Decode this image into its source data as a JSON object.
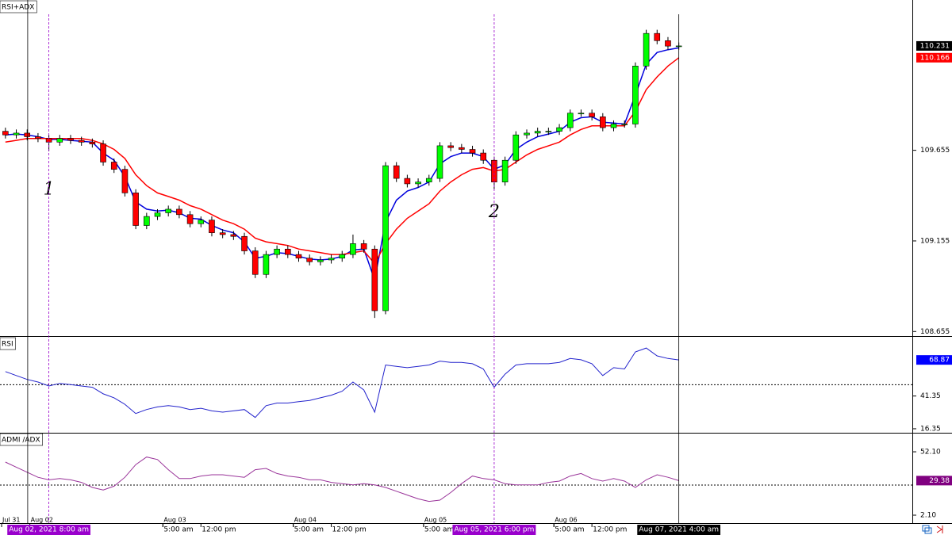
{
  "time_axis": {
    "xlim": [
      0,
      168
    ],
    "xticks": [
      {
        "value": 0.3,
        "label": "Jul 31"
      },
      {
        "value": 5.5,
        "label": "Aug 02"
      },
      {
        "value": 30,
        "label": "Aug 03"
      },
      {
        "value": 54,
        "label": "Aug 04"
      },
      {
        "value": 78,
        "label": "Aug 05"
      },
      {
        "value": 102,
        "label": "Aug 06"
      }
    ],
    "time_ticks": [
      {
        "value": 30,
        "label": "5:00 am"
      },
      {
        "value": 37,
        "label": "12:00 pm"
      },
      {
        "value": 54,
        "label": "5:00 am"
      },
      {
        "value": 61,
        "label": "12:00 pm"
      },
      {
        "value": 78,
        "label": "5:00 am"
      },
      {
        "value": 102,
        "label": "5:00 am"
      },
      {
        "value": 109,
        "label": "12:00 pm"
      }
    ],
    "separators": [
      5.1
    ],
    "markers": [
      {
        "value": 9,
        "label": "Aug 02, 2021 8:00 am",
        "color": "#9900cc",
        "dashed": true
      },
      {
        "value": 91,
        "label": "Aug 05, 2021 6:00 pm",
        "color": "#9900cc",
        "dashed": true
      },
      {
        "value": 125,
        "label": "Aug 07, 2021 4:00 am",
        "color": "#000000",
        "dashed": false
      }
    ]
  },
  "chart_data": [
    {
      "type": "candlestick",
      "title": "RSI+ADX",
      "ylim": [
        108.63,
        110.48
      ],
      "yticks": [
        108.655,
        109.155,
        109.655
      ],
      "up_color": "#00ff00",
      "down_color": "#ff0000",
      "tags": [
        {
          "value": 110.231,
          "label": "110.231",
          "color": "#000000"
        },
        {
          "value": 110.166,
          "label": "110.166",
          "color": "#ff0000"
        }
      ],
      "annotations": [
        {
          "text": "1",
          "x": 9,
          "y": 109.436
        },
        {
          "text": "2",
          "x": 91,
          "y": 109.313
        }
      ],
      "x": [
        1,
        3,
        5,
        7,
        9,
        11,
        13,
        15,
        17,
        19,
        21,
        23,
        25,
        27,
        29,
        31,
        33,
        35,
        37,
        39,
        41,
        43,
        45,
        47,
        49,
        51,
        53,
        55,
        57,
        59,
        61,
        63,
        65,
        67,
        69,
        71,
        73,
        75,
        77,
        79,
        81,
        83,
        85,
        87,
        89,
        91,
        93,
        95,
        97,
        99,
        101,
        103,
        105,
        107,
        109,
        111,
        113,
        115,
        117,
        119,
        121,
        123,
        125
      ],
      "open": [
        109.76,
        109.74,
        109.75,
        109.73,
        109.72,
        109.7,
        109.72,
        109.71,
        109.7,
        109.69,
        109.59,
        109.55,
        109.42,
        109.24,
        109.29,
        109.31,
        109.33,
        109.3,
        109.25,
        109.27,
        109.2,
        109.19,
        109.18,
        109.1,
        108.97,
        109.08,
        109.11,
        109.08,
        109.06,
        109.04,
        109.05,
        109.06,
        109.08,
        109.14,
        109.11,
        108.77,
        109.57,
        109.5,
        109.47,
        109.48,
        109.5,
        109.68,
        109.67,
        109.66,
        109.64,
        109.6,
        109.48,
        109.6,
        109.74,
        109.75,
        109.76,
        109.76,
        109.78,
        109.86,
        109.86,
        109.84,
        109.78,
        109.8,
        109.8,
        110.12,
        110.3,
        110.26,
        110.23
      ],
      "high": [
        109.78,
        109.77,
        109.77,
        109.75,
        109.74,
        109.74,
        109.74,
        109.73,
        109.72,
        109.71,
        109.61,
        109.57,
        109.44,
        109.31,
        109.33,
        109.35,
        109.35,
        109.32,
        109.29,
        109.29,
        109.22,
        109.21,
        109.2,
        109.12,
        109.1,
        109.13,
        109.13,
        109.1,
        109.08,
        109.07,
        109.08,
        109.1,
        109.19,
        109.16,
        109.13,
        109.59,
        109.59,
        109.52,
        109.5,
        109.52,
        109.7,
        109.7,
        109.69,
        109.68,
        109.66,
        109.62,
        109.62,
        109.76,
        109.77,
        109.78,
        109.78,
        109.8,
        109.88,
        109.88,
        109.88,
        109.86,
        109.82,
        109.82,
        110.14,
        110.32,
        110.32,
        110.28,
        110.25
      ],
      "low": [
        109.72,
        109.72,
        109.71,
        109.7,
        109.65,
        109.68,
        109.69,
        109.68,
        109.67,
        109.57,
        109.53,
        109.4,
        109.22,
        109.22,
        109.27,
        109.29,
        109.28,
        109.23,
        109.23,
        109.18,
        109.17,
        109.16,
        109.08,
        108.95,
        108.95,
        109.06,
        109.06,
        109.04,
        109.02,
        109.02,
        109.03,
        109.04,
        109.06,
        109.09,
        108.73,
        108.75,
        109.48,
        109.45,
        109.45,
        109.46,
        109.48,
        109.65,
        109.64,
        109.62,
        109.58,
        109.44,
        109.46,
        109.58,
        109.72,
        109.73,
        109.74,
        109.74,
        109.76,
        109.84,
        109.82,
        109.76,
        109.76,
        109.78,
        109.78,
        110.1,
        110.24,
        110.21,
        110.21
      ],
      "close": [
        109.74,
        109.75,
        109.73,
        109.72,
        109.7,
        109.72,
        109.71,
        109.7,
        109.69,
        109.59,
        109.55,
        109.42,
        109.24,
        109.29,
        109.31,
        109.33,
        109.3,
        109.25,
        109.27,
        109.2,
        109.19,
        109.18,
        109.1,
        108.97,
        109.08,
        109.11,
        109.08,
        109.06,
        109.04,
        109.05,
        109.06,
        109.08,
        109.14,
        109.11,
        108.77,
        109.57,
        109.5,
        109.47,
        109.48,
        109.5,
        109.68,
        109.67,
        109.66,
        109.64,
        109.6,
        109.48,
        109.6,
        109.74,
        109.75,
        109.76,
        109.76,
        109.78,
        109.86,
        109.86,
        109.84,
        109.78,
        109.8,
        109.8,
        110.12,
        110.3,
        110.26,
        110.23,
        110.231
      ],
      "lines": [
        {
          "color": "#0000dd",
          "values": [
            109.74,
            109.745,
            109.74,
            109.73,
            109.715,
            109.715,
            109.71,
            109.705,
            109.7,
            109.64,
            109.6,
            109.51,
            109.37,
            109.33,
            109.32,
            109.325,
            109.31,
            109.28,
            109.275,
            109.24,
            109.215,
            109.2,
            109.15,
            109.06,
            109.07,
            109.09,
            109.085,
            109.07,
            109.055,
            109.05,
            109.055,
            109.07,
            109.105,
            109.11,
            108.94,
            109.26,
            109.38,
            109.43,
            109.45,
            109.48,
            109.58,
            109.62,
            109.64,
            109.64,
            109.62,
            109.55,
            109.575,
            109.66,
            109.7,
            109.73,
            109.745,
            109.76,
            109.81,
            109.835,
            109.84,
            109.81,
            109.805,
            109.8,
            109.96,
            110.13,
            110.195,
            110.21,
            110.22
          ]
        },
        {
          "color": "#ff0000",
          "values": [
            109.7,
            109.71,
            109.72,
            109.72,
            109.72,
            109.72,
            109.72,
            109.72,
            109.71,
            109.69,
            109.66,
            109.61,
            109.52,
            109.46,
            109.42,
            109.4,
            109.38,
            109.35,
            109.33,
            109.3,
            109.27,
            109.25,
            109.22,
            109.17,
            109.15,
            109.14,
            109.13,
            109.11,
            109.1,
            109.09,
            109.08,
            109.08,
            109.09,
            109.1,
            109.03,
            109.14,
            109.22,
            109.28,
            109.32,
            109.36,
            109.43,
            109.48,
            109.52,
            109.55,
            109.56,
            109.54,
            109.55,
            109.59,
            109.63,
            109.66,
            109.68,
            109.7,
            109.74,
            109.77,
            109.79,
            109.79,
            109.79,
            109.79,
            109.87,
            109.99,
            110.06,
            110.12,
            110.166
          ]
        }
      ]
    },
    {
      "type": "line",
      "title": "RSI",
      "ylim": [
        13.3,
        85.9
      ],
      "yticks": [
        16.35,
        41.35
      ],
      "levels": [
        50
      ],
      "color": "#2222cc",
      "tags": [
        {
          "value": 68.87,
          "label": "68.87",
          "color": "#0000ff"
        }
      ],
      "values": [
        60,
        57,
        54,
        52,
        49,
        51,
        50,
        49,
        48,
        43,
        40,
        35,
        28,
        31,
        33,
        34,
        33,
        31,
        32,
        30,
        29,
        30,
        31,
        25,
        34,
        36,
        36,
        37,
        38,
        40,
        42,
        45,
        52,
        46,
        29,
        65,
        64,
        63,
        64,
        65,
        68,
        67,
        67,
        66,
        62,
        48,
        58,
        65,
        66,
        66,
        66,
        67,
        70,
        69,
        66,
        57,
        63,
        62,
        75,
        78,
        72,
        70,
        68.87
      ]
    },
    {
      "type": "line",
      "title": "ADMI /ADX",
      "ylim": [
        -4.15,
        66.5
      ],
      "yticks": [
        {
          "value": 52.1,
          "label": "52.10"
        },
        {
          "value": 2.1,
          "label": "2.10"
        }
      ],
      "levels": [
        25.85
      ],
      "color": "#993399",
      "tags": [
        {
          "value": 29.38,
          "label": "29.38",
          "color": "#800080"
        }
      ],
      "values": [
        44,
        40,
        36,
        32,
        30,
        31,
        30,
        28,
        24,
        22,
        25,
        32,
        42,
        48,
        46,
        38,
        31,
        31,
        33,
        34,
        34,
        33,
        32,
        38,
        39,
        35,
        33,
        32,
        30,
        30,
        28,
        27,
        26,
        27,
        26,
        24,
        21,
        18,
        15,
        13,
        14,
        20,
        27,
        33,
        31,
        30,
        27,
        26,
        26,
        26,
        28,
        29,
        33,
        35,
        31,
        29,
        31,
        29,
        24,
        30,
        34,
        32,
        29.38
      ]
    }
  ]
}
